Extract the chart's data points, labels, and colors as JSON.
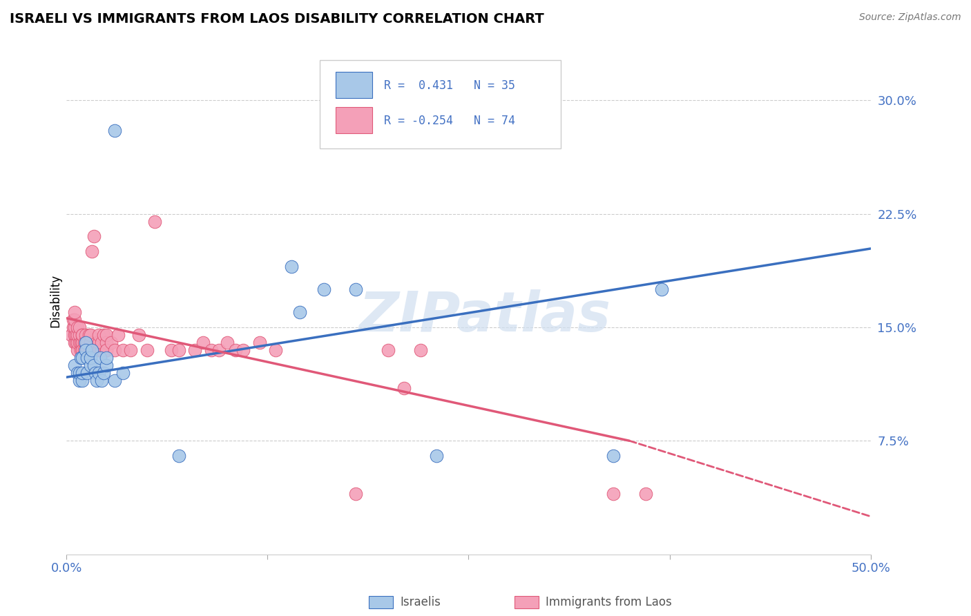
{
  "title": "ISRAELI VS IMMIGRANTS FROM LAOS DISABILITY CORRELATION CHART",
  "source": "Source: ZipAtlas.com",
  "ylabel": "Disability",
  "ytick_labels": [
    "7.5%",
    "15.0%",
    "22.5%",
    "30.0%"
  ],
  "ytick_values": [
    0.075,
    0.15,
    0.225,
    0.3
  ],
  "xlim": [
    0.0,
    0.5
  ],
  "ylim": [
    0.0,
    0.335
  ],
  "legend_r_israeli": "0.431",
  "legend_n_israeli": "35",
  "legend_r_laos": "-0.254",
  "legend_n_laos": "74",
  "israeli_color": "#a8c8e8",
  "laos_color": "#f4a0b8",
  "israeli_line_color": "#3a6fbf",
  "laos_line_color": "#e05878",
  "watermark": "ZIPatlas",
  "israeli_x": [
    0.03,
    0.005,
    0.007,
    0.008,
    0.008,
    0.009,
    0.01,
    0.01,
    0.01,
    0.012,
    0.012,
    0.013,
    0.013,
    0.015,
    0.015,
    0.016,
    0.017,
    0.018,
    0.019,
    0.02,
    0.021,
    0.022,
    0.023,
    0.025,
    0.025,
    0.03,
    0.035,
    0.07,
    0.16,
    0.18,
    0.23,
    0.34,
    0.37,
    0.14,
    0.145
  ],
  "israeli_y": [
    0.28,
    0.125,
    0.12,
    0.115,
    0.12,
    0.13,
    0.115,
    0.12,
    0.13,
    0.14,
    0.135,
    0.13,
    0.12,
    0.125,
    0.13,
    0.135,
    0.125,
    0.12,
    0.115,
    0.12,
    0.13,
    0.115,
    0.12,
    0.125,
    0.13,
    0.115,
    0.12,
    0.065,
    0.175,
    0.175,
    0.065,
    0.065,
    0.175,
    0.19,
    0.16
  ],
  "laos_x": [
    0.003,
    0.004,
    0.004,
    0.005,
    0.005,
    0.005,
    0.005,
    0.005,
    0.006,
    0.006,
    0.007,
    0.007,
    0.007,
    0.007,
    0.008,
    0.008,
    0.008,
    0.009,
    0.009,
    0.01,
    0.01,
    0.01,
    0.01,
    0.01,
    0.01,
    0.011,
    0.011,
    0.012,
    0.012,
    0.013,
    0.013,
    0.014,
    0.014,
    0.015,
    0.015,
    0.016,
    0.017,
    0.018,
    0.019,
    0.02,
    0.02,
    0.02,
    0.022,
    0.022,
    0.023,
    0.025,
    0.025,
    0.025,
    0.025,
    0.028,
    0.03,
    0.032,
    0.035,
    0.04,
    0.045,
    0.05,
    0.055,
    0.065,
    0.07,
    0.08,
    0.085,
    0.09,
    0.095,
    0.1,
    0.105,
    0.11,
    0.12,
    0.13,
    0.21,
    0.22,
    0.18,
    0.2,
    0.34,
    0.36
  ],
  "laos_y": [
    0.145,
    0.15,
    0.155,
    0.14,
    0.145,
    0.15,
    0.155,
    0.16,
    0.14,
    0.145,
    0.135,
    0.14,
    0.145,
    0.15,
    0.14,
    0.145,
    0.15,
    0.135,
    0.14,
    0.14,
    0.145,
    0.135,
    0.14,
    0.145,
    0.135,
    0.14,
    0.135,
    0.145,
    0.14,
    0.135,
    0.14,
    0.145,
    0.135,
    0.14,
    0.145,
    0.2,
    0.21,
    0.135,
    0.14,
    0.135,
    0.14,
    0.145,
    0.135,
    0.14,
    0.145,
    0.135,
    0.14,
    0.145,
    0.135,
    0.14,
    0.135,
    0.145,
    0.135,
    0.135,
    0.145,
    0.135,
    0.22,
    0.135,
    0.135,
    0.135,
    0.14,
    0.135,
    0.135,
    0.14,
    0.135,
    0.135,
    0.14,
    0.135,
    0.11,
    0.135,
    0.04,
    0.135,
    0.04,
    0.04
  ]
}
